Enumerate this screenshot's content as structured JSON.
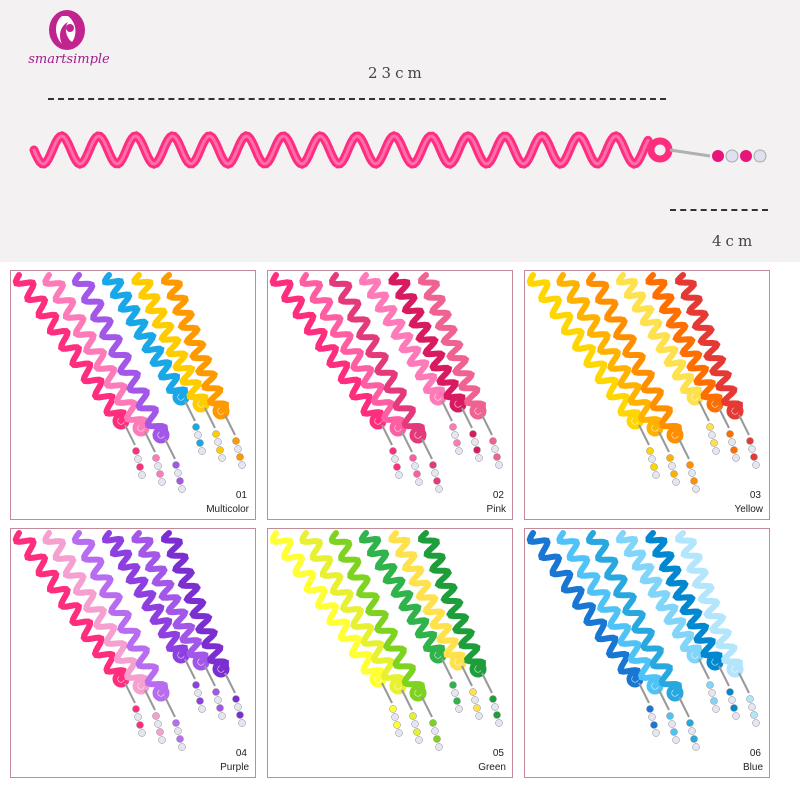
{
  "brand": {
    "name": "smartsimple",
    "color": "#a21d8a"
  },
  "dimensions": {
    "length": "23cm",
    "bead": "4cm"
  },
  "variants": [
    {
      "number": "01",
      "name": "Multicolor",
      "colors": [
        "#ff2d7e",
        "#ff7ab8",
        "#a357e8",
        "#19a7e8",
        "#ffcc00",
        "#ff9900"
      ]
    },
    {
      "number": "02",
      "name": "Pink",
      "colors": [
        "#ff2d7e",
        "#ff5fa2",
        "#e23a7a",
        "#ff7ab8",
        "#d81b60",
        "#f06292"
      ]
    },
    {
      "number": "03",
      "name": "Yellow",
      "colors": [
        "#ffd600",
        "#ffb300",
        "#ff8f00",
        "#ffe14d",
        "#ff6f00",
        "#e53935"
      ]
    },
    {
      "number": "04",
      "name": "Purple",
      "colors": [
        "#ff2d7e",
        "#f5a0d0",
        "#b86cf0",
        "#8e3fe0",
        "#a357e8",
        "#7b2fd0"
      ]
    },
    {
      "number": "05",
      "name": "Green",
      "colors": [
        "#ffff33",
        "#e8f032",
        "#7ed321",
        "#2fb34a",
        "#ffe14d",
        "#1e9e3a"
      ]
    },
    {
      "number": "06",
      "name": "Blue",
      "colors": [
        "#1976d2",
        "#4fc3f7",
        "#29a8e0",
        "#81d4fa",
        "#0288d1",
        "#b3e5fc"
      ]
    }
  ]
}
